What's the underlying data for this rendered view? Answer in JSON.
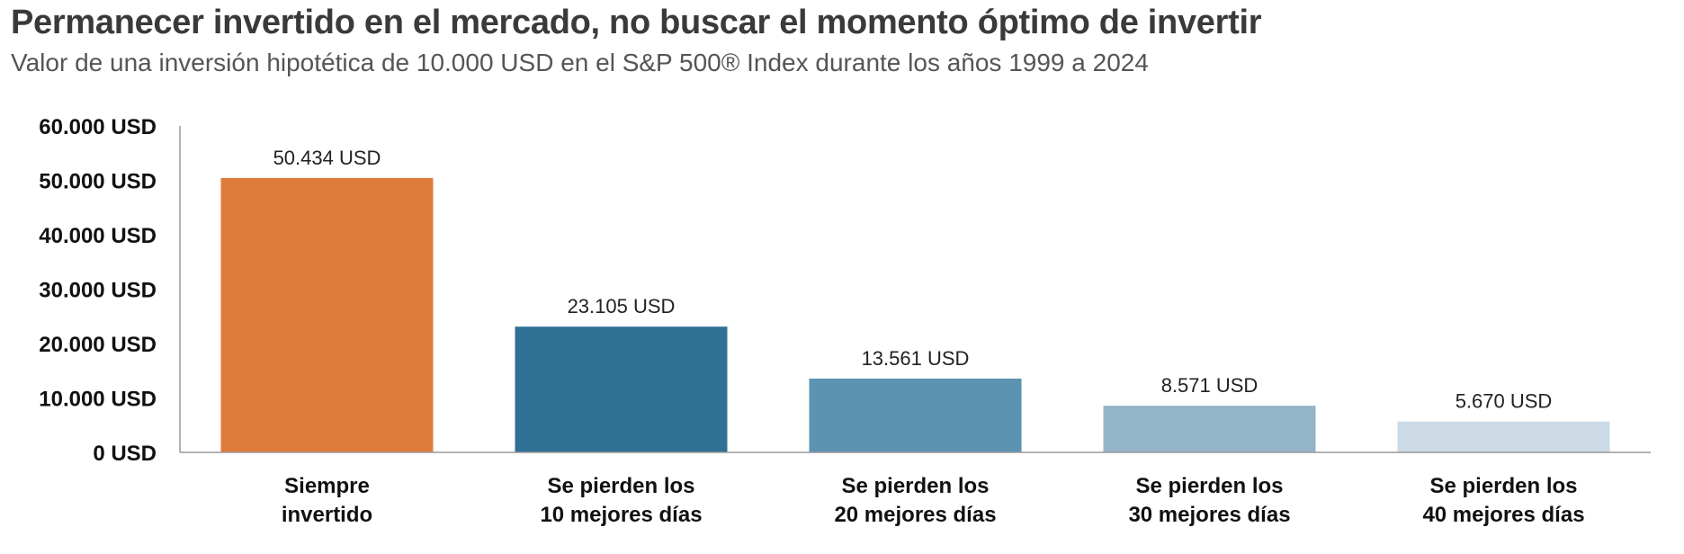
{
  "header": {
    "title": "Permanecer invertido en el mercado, no buscar el momento óptimo de invertir",
    "subtitle": "Valor de una inversión hipotética de 10.000 USD en el S&P 500® Index durante los años 1999 a 2024"
  },
  "chart_data": {
    "type": "bar",
    "title": "Permanecer invertido en el mercado, no buscar el momento óptimo de invertir",
    "subtitle": "Valor de una inversión hipotética de 10.000 USD en el S&P 500® Index durante los años 1999 a 2024",
    "xlabel": "",
    "ylabel": "",
    "ylim": [
      0,
      60000
    ],
    "grid": false,
    "yticks": [
      {
        "value": 0,
        "label": "0 USD"
      },
      {
        "value": 10000,
        "label": "10.000 USD"
      },
      {
        "value": 20000,
        "label": "20.000 USD"
      },
      {
        "value": 30000,
        "label": "30.000 USD"
      },
      {
        "value": 40000,
        "label": "40.000 USD"
      },
      {
        "value": 50000,
        "label": "50.000 USD"
      },
      {
        "value": 60000,
        "label": "60.000 USD"
      }
    ],
    "categories": [
      [
        "Siempre",
        "invertido"
      ],
      [
        "Se pierden los",
        "10 mejores días"
      ],
      [
        "Se pierden los",
        "20 mejores días"
      ],
      [
        "Se pierden los",
        "30 mejores días"
      ],
      [
        "Se pierden los",
        "40 mejores días"
      ]
    ],
    "values": [
      50434,
      23105,
      13561,
      8571,
      5670
    ],
    "value_labels": [
      "50.434 USD",
      "23.105 USD",
      "13.561 USD",
      "8.571 USD",
      "5.670 USD"
    ],
    "colors": [
      "#e07c3b",
      "#2f7094",
      "#5b93b1",
      "#94b4c8",
      "#cbdae5"
    ]
  }
}
